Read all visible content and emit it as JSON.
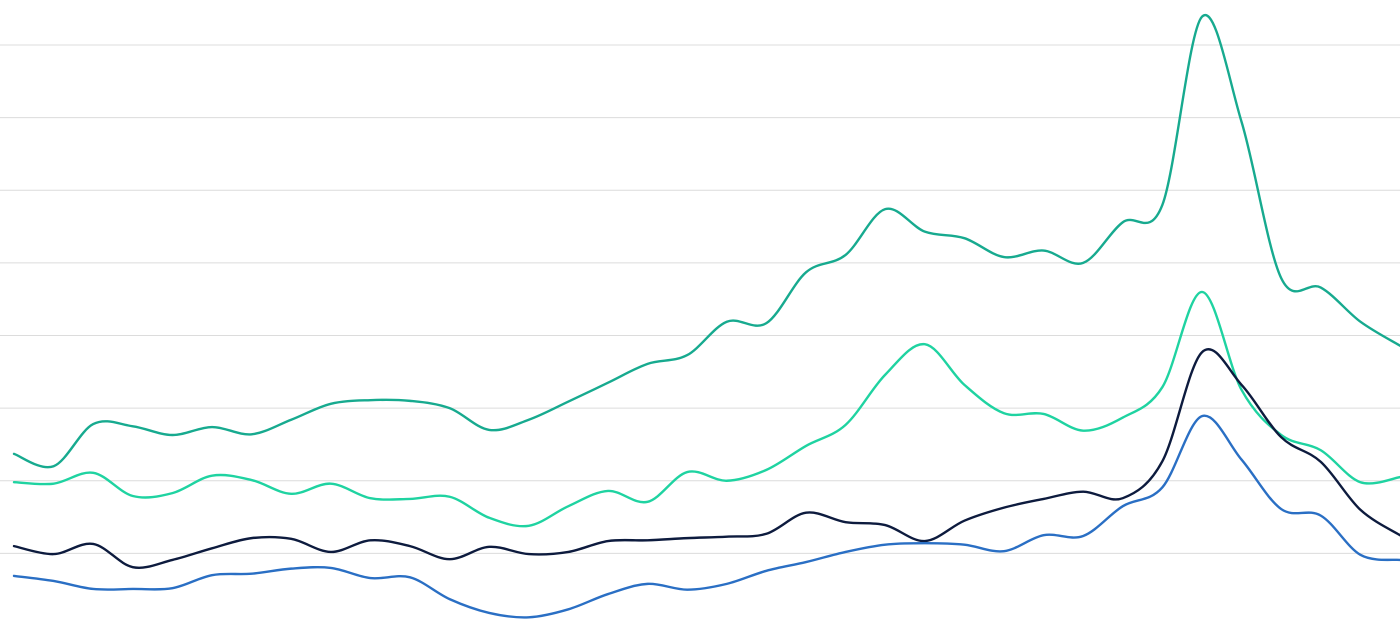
{
  "chart_data": {
    "type": "line",
    "x": [
      0,
      1,
      2,
      3,
      4,
      5,
      6,
      7,
      8,
      9,
      10,
      11,
      12,
      13,
      14,
      15,
      16,
      17,
      18,
      19,
      20,
      21,
      22,
      23,
      24,
      25,
      26,
      27,
      28,
      29,
      30,
      31,
      32,
      33,
      34,
      35
    ],
    "xlim": [
      0,
      35
    ],
    "ylim": [
      0,
      8.62
    ],
    "yticks": [
      1,
      2,
      3,
      4,
      5,
      6,
      7,
      8
    ],
    "grid": true,
    "series": [
      {
        "color": "#17aa8f",
        "values": [
          2.37,
          2.2,
          2.78,
          2.75,
          2.63,
          2.74,
          2.64,
          2.84,
          3.06,
          3.11,
          3.1,
          3.0,
          2.7,
          2.84,
          3.09,
          3.35,
          3.61,
          3.73,
          4.19,
          4.17,
          4.87,
          5.11,
          5.74,
          5.43,
          5.34,
          5.08,
          5.17,
          5.0,
          5.56,
          5.8,
          8.39,
          6.94,
          4.79,
          4.66,
          4.19,
          3.86
        ]
      },
      {
        "color": "#1fd3a1",
        "values": [
          1.98,
          1.96,
          2.11,
          1.79,
          1.83,
          2.07,
          2.01,
          1.82,
          1.96,
          1.76,
          1.75,
          1.78,
          1.49,
          1.38,
          1.65,
          1.86,
          1.71,
          2.12,
          2.0,
          2.15,
          2.48,
          2.77,
          3.46,
          3.88,
          3.32,
          2.93,
          2.92,
          2.69,
          2.87,
          3.29,
          4.6,
          3.25,
          2.63,
          2.42,
          1.98,
          2.05
        ]
      },
      {
        "color": "#0d1b3e",
        "values": [
          1.1,
          0.99,
          1.13,
          0.81,
          0.91,
          1.07,
          1.21,
          1.2,
          1.02,
          1.18,
          1.1,
          0.92,
          1.09,
          0.99,
          1.02,
          1.17,
          1.18,
          1.21,
          1.23,
          1.27,
          1.56,
          1.43,
          1.39,
          1.17,
          1.45,
          1.63,
          1.75,
          1.85,
          1.76,
          2.27,
          3.77,
          3.32,
          2.6,
          2.26,
          1.6,
          1.25
        ]
      },
      {
        "color": "#2a6fc4",
        "values": [
          0.69,
          0.62,
          0.51,
          0.51,
          0.52,
          0.7,
          0.72,
          0.79,
          0.8,
          0.66,
          0.67,
          0.37,
          0.18,
          0.12,
          0.23,
          0.44,
          0.58,
          0.5,
          0.58,
          0.76,
          0.88,
          1.02,
          1.12,
          1.14,
          1.12,
          1.03,
          1.25,
          1.24,
          1.65,
          1.91,
          2.89,
          2.29,
          1.61,
          1.52,
          0.98,
          0.91
        ]
      }
    ]
  }
}
